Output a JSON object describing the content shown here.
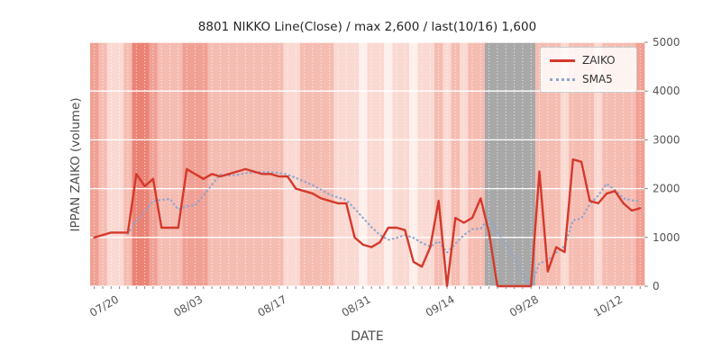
{
  "chart_data": {
    "type": "line",
    "title": "8801 NIKKO Line(Close) / max 2,600 / last(10/16) 1,600",
    "xlabel": "DATE",
    "ylabel": "IPPAN ZAIKO (volume)",
    "ylim": [
      0,
      5000
    ],
    "yticks": [
      0,
      1000,
      2000,
      3000,
      4000,
      5000
    ],
    "xtick_labels": [
      "07/20",
      "08/03",
      "08/17",
      "08/31",
      "09/14",
      "09/28",
      "10/12"
    ],
    "xtick_indices": [
      3,
      13,
      23,
      33,
      43,
      53,
      63
    ],
    "dates": [
      "07/17",
      "07/18",
      "07/19",
      "07/20",
      "07/21",
      "07/24",
      "07/25",
      "07/26",
      "07/27",
      "07/28",
      "07/31",
      "08/01",
      "08/02",
      "08/03",
      "08/04",
      "08/07",
      "08/08",
      "08/09",
      "08/10",
      "08/11",
      "08/14",
      "08/15",
      "08/16",
      "08/17",
      "08/18",
      "08/21",
      "08/22",
      "08/23",
      "08/24",
      "08/25",
      "08/28",
      "08/29",
      "08/30",
      "08/31",
      "09/01",
      "09/04",
      "09/05",
      "09/06",
      "09/07",
      "09/08",
      "09/11",
      "09/12",
      "09/13",
      "09/14",
      "09/15",
      "09/18",
      "09/19",
      "09/20",
      "09/21",
      "09/22",
      "09/25",
      "09/26",
      "09/27",
      "09/28",
      "09/29",
      "10/02",
      "10/03",
      "10/04",
      "10/05",
      "10/06",
      "10/09",
      "10/10",
      "10/11",
      "10/12",
      "10/13",
      "10/16"
    ],
    "series": [
      {
        "name": "ZAIKO",
        "color": "#d4392b",
        "style": "solid",
        "values": [
          1000,
          1050,
          1100,
          1100,
          1100,
          2300,
          2050,
          2200,
          1200,
          1200,
          1200,
          2400,
          2300,
          2200,
          2300,
          2250,
          2300,
          2350,
          2400,
          2350,
          2300,
          2300,
          2250,
          2250,
          2000,
          1950,
          1900,
          1800,
          1750,
          1700,
          1700,
          1000,
          850,
          800,
          900,
          1200,
          1200,
          1150,
          500,
          400,
          800,
          1750,
          0,
          1400,
          1300,
          1400,
          1800,
          1100,
          0,
          0,
          0,
          0,
          0,
          2350,
          300,
          800,
          700,
          2600,
          2550,
          1750,
          1700,
          1900,
          1950,
          1700,
          1550,
          1600
        ]
      },
      {
        "name": "SMA5",
        "color": "#8fa6cf",
        "style": "dotted",
        "derivation": "5-day simple moving average of ZAIKO values"
      }
    ],
    "max_value": 2600,
    "last_value": 1600,
    "last_date": "10/16",
    "band_levels": [
      3,
      2,
      1,
      1,
      2,
      4,
      4,
      3,
      2,
      2,
      2,
      3,
      3,
      3,
      2,
      2,
      2,
      2,
      2,
      2,
      2,
      2,
      2,
      1,
      1,
      2,
      2,
      2,
      2,
      1,
      1,
      1,
      0,
      1,
      1,
      0,
      1,
      1,
      0,
      1,
      1,
      2,
      1,
      2,
      1,
      2,
      2,
      9,
      9,
      9,
      9,
      9,
      9,
      2,
      2,
      2,
      1,
      2,
      2,
      2,
      1,
      2,
      2,
      2,
      2,
      3
    ],
    "band_palette": [
      "#fdf0ec",
      "#fad9d2",
      "#f5bcb2",
      "#f0a094",
      "#ea8375"
    ],
    "gray_band_color": "#a8a8a8",
    "plot_bg": "#e8e8e8",
    "grid_color": "#ffffff",
    "tick_color": "#8c8c8c",
    "tick_label_color": "#555555",
    "legend_position": "upper right",
    "grid": true
  },
  "legend": {
    "items": [
      {
        "label": "ZAIKO"
      },
      {
        "label": "SMA5"
      }
    ]
  }
}
